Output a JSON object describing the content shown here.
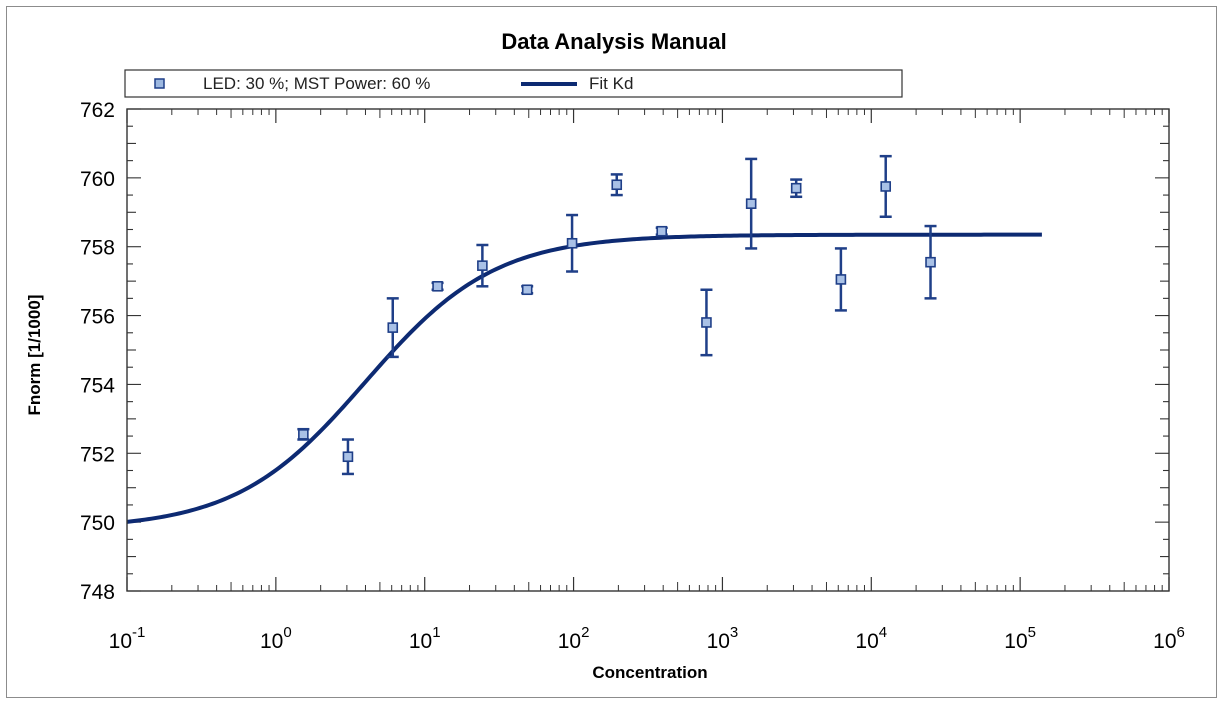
{
  "chart_data": {
    "type": "scatter",
    "title": "Data Analysis Manual",
    "xlabel": "Concentration",
    "ylabel": "Fnorm [1/1000]",
    "xscale": "log",
    "xlim": [
      0.1,
      1000000
    ],
    "ylim": [
      748,
      762
    ],
    "x_ticks": [
      {
        "base": "10",
        "exp": "-1"
      },
      {
        "base": "10",
        "exp": "0"
      },
      {
        "base": "10",
        "exp": "1"
      },
      {
        "base": "10",
        "exp": "2"
      },
      {
        "base": "10",
        "exp": "3"
      },
      {
        "base": "10",
        "exp": "4"
      },
      {
        "base": "10",
        "exp": "5"
      },
      {
        "base": "10",
        "exp": "6"
      }
    ],
    "y_ticks": [
      "748",
      "750",
      "752",
      "754",
      "756",
      "758",
      "760",
      "762"
    ],
    "legend_position": "top",
    "series": [
      {
        "name": "LED: 30 %; MST Power: 60 %",
        "style": "points-with-error-bars",
        "color": "#1f3f88",
        "points": [
          {
            "x": 1.53,
            "y": 752.55,
            "err": 0.15
          },
          {
            "x": 3.05,
            "y": 751.9,
            "err": 0.5
          },
          {
            "x": 6.1,
            "y": 755.65,
            "err": 0.85
          },
          {
            "x": 12.2,
            "y": 756.85,
            "err": 0.1
          },
          {
            "x": 24.4,
            "y": 757.45,
            "err": 0.6
          },
          {
            "x": 48.8,
            "y": 756.75,
            "err": 0.1
          },
          {
            "x": 97.7,
            "y": 758.1,
            "err": 0.82
          },
          {
            "x": 195,
            "y": 759.8,
            "err": 0.3
          },
          {
            "x": 391,
            "y": 758.45,
            "err": 0.1
          },
          {
            "x": 781,
            "y": 755.8,
            "err": 0.95
          },
          {
            "x": 1560,
            "y": 759.25,
            "err": 1.3
          },
          {
            "x": 3130,
            "y": 759.7,
            "err": 0.25
          },
          {
            "x": 6250,
            "y": 757.05,
            "err": 0.9
          },
          {
            "x": 12500,
            "y": 759.75,
            "err": 0.88
          },
          {
            "x": 25000,
            "y": 757.55,
            "err": 1.05
          }
        ]
      },
      {
        "name": "Fit Kd",
        "style": "line",
        "color": "#0d2a72",
        "model": {
          "bottom": 749.8,
          "top": 758.35,
          "kd": 4.0
        },
        "x_range": [
          0.1,
          140000
        ]
      }
    ]
  }
}
